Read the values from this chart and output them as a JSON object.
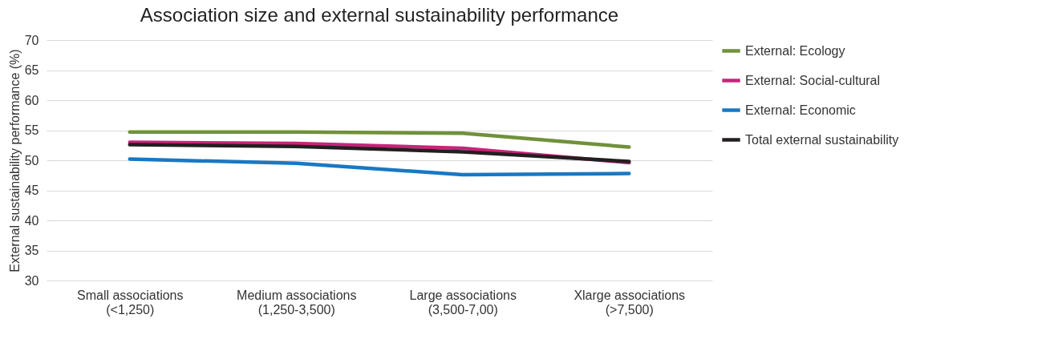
{
  "chart_data": {
    "type": "line",
    "title": "Association size and external sustainability performance",
    "ylabel": "External sustainability performance (%)",
    "categories": [
      "Small associations (<1,250)",
      "Medium associations (1,250-3,500)",
      "Large associations (3,500-7,00)",
      "Xlarge associations (>7,500)"
    ],
    "series": [
      {
        "name": "External: Ecology",
        "color": "#70913a",
        "values": [
          54.7,
          54.7,
          54.5,
          52.2
        ]
      },
      {
        "name": "External: Social-cultural",
        "color": "#c8247a",
        "values": [
          53.0,
          52.8,
          52.0,
          49.6
        ]
      },
      {
        "name": "External: Economic",
        "color": "#1a78c2",
        "values": [
          50.2,
          49.5,
          47.6,
          47.8
        ]
      },
      {
        "name": "Total external sustainability",
        "color": "#231f20",
        "values": [
          52.6,
          52.3,
          51.4,
          49.8
        ]
      }
    ],
    "ylim": [
      30,
      70
    ],
    "yticks": [
      30,
      35,
      40,
      45,
      50,
      55,
      60,
      65,
      70
    ],
    "grid": "y",
    "legend": "right",
    "line_style": "solid",
    "marker": "none"
  }
}
